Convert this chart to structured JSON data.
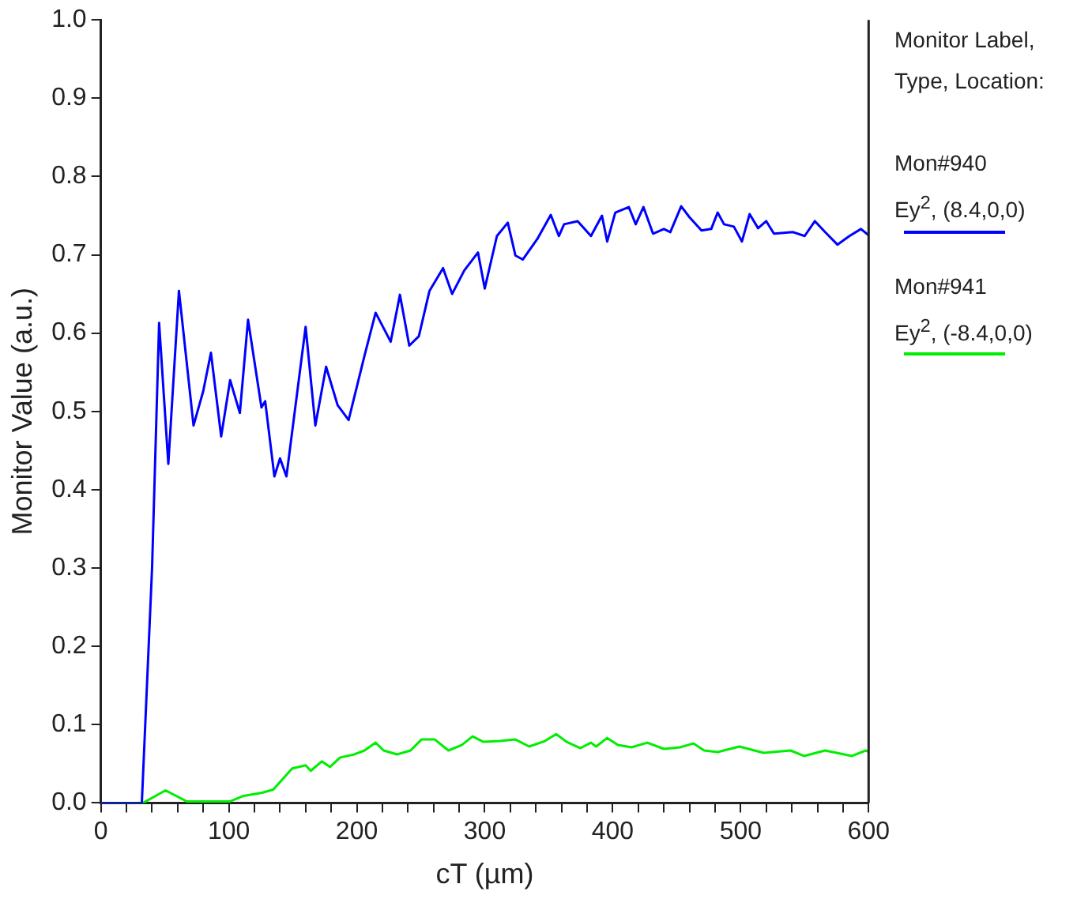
{
  "chart_data": {
    "type": "line",
    "xlabel": "cT (µm)",
    "ylabel": "Monitor Value (a.u.)",
    "legend_title": "Monitor Label,\nType, Location:",
    "legend": "right",
    "grid": false,
    "marker": "none",
    "line_style": "solid",
    "xlim": [
      0,
      600
    ],
    "ylim": [
      0,
      1
    ],
    "xticks": [
      0,
      {
        "value": 20,
        "label": null
      },
      {
        "value": 40,
        "label": null
      },
      {
        "value": 60,
        "label": null
      },
      {
        "value": 80,
        "label": null
      },
      100,
      {
        "value": 120,
        "label": null
      },
      {
        "value": 140,
        "label": null
      },
      {
        "value": 160,
        "label": null
      },
      {
        "value": 180,
        "label": null
      },
      200,
      {
        "value": 220,
        "label": null
      },
      {
        "value": 240,
        "label": null
      },
      {
        "value": 260,
        "label": null
      },
      {
        "value": 280,
        "label": null
      },
      300,
      {
        "value": 320,
        "label": null
      },
      {
        "value": 340,
        "label": null
      },
      {
        "value": 360,
        "label": null
      },
      {
        "value": 380,
        "label": null
      },
      400,
      {
        "value": 420,
        "label": null
      },
      {
        "value": 440,
        "label": null
      },
      {
        "value": 460,
        "label": null
      },
      {
        "value": 480,
        "label": null
      },
      500,
      {
        "value": 520,
        "label": null
      },
      {
        "value": 540,
        "label": null
      },
      {
        "value": 560,
        "label": null
      },
      {
        "value": 580,
        "label": null
      },
      600
    ],
    "yticks": [
      {
        "value": 0,
        "label": "0.0"
      },
      0.1,
      0.2,
      0.3,
      0.4,
      0.5,
      0.6,
      0.7,
      0.8,
      0.9,
      {
        "value": 1,
        "label": "1.0"
      }
    ],
    "series": [
      {
        "name": "Mon#940\nEy$^{2}$, (8.4,0,0)",
        "color": "#0000ff",
        "x": [
          0,
          32,
          40,
          45.5,
          52.7,
          61,
          72.4,
          80,
          86,
          94,
          101,
          108.6,
          115,
          125.5,
          128.4,
          135.6,
          140,
          145,
          160,
          167.6,
          176,
          185,
          193.6,
          206,
          214.7,
          226.5,
          233.7,
          241,
          248.5,
          256.8,
          267.4,
          274.5,
          284,
          294.7,
          300,
          309.5,
          318,
          324,
          329.7,
          341,
          351.6,
          357.9,
          362,
          372.6,
          383,
          391.6,
          395.7,
          402,
          412.6,
          418,
          424,
          431.5,
          440,
          445,
          453.5,
          460,
          469.4,
          477,
          482,
          487,
          494.7,
          501,
          507,
          513.6,
          520,
          526,
          541,
          550,
          558,
          566,
          575.6,
          585,
          594,
          600
        ],
        "values": [
          0,
          0,
          0.3,
          0.613,
          0.433,
          0.654,
          0.482,
          0.526,
          0.575,
          0.468,
          0.54,
          0.498,
          0.617,
          0.505,
          0.513,
          0.417,
          0.44,
          0.417,
          0.608,
          0.482,
          0.557,
          0.508,
          0.489,
          0.571,
          0.626,
          0.589,
          0.649,
          0.584,
          0.596,
          0.654,
          0.683,
          0.65,
          0.68,
          0.703,
          0.657,
          0.724,
          0.741,
          0.699,
          0.694,
          0.72,
          0.751,
          0.724,
          0.739,
          0.743,
          0.724,
          0.75,
          0.717,
          0.754,
          0.761,
          0.739,
          0.761,
          0.727,
          0.733,
          0.729,
          0.762,
          0.748,
          0.731,
          0.733,
          0.754,
          0.739,
          0.736,
          0.717,
          0.752,
          0.734,
          0.743,
          0.727,
          0.729,
          0.724,
          0.743,
          0.729,
          0.713,
          0.724,
          0.733,
          0.725
        ]
      },
      {
        "name": "Mon#941\nEy$^{2}$, (-8.4,0,0)",
        "color": "#00ee00",
        "x": [
          0,
          33,
          50.5,
          67,
          101,
          111.6,
          126,
          134.7,
          149.5,
          160,
          164,
          172.6,
          179,
          187,
          198,
          206,
          214.7,
          221,
          231.5,
          242,
          250.5,
          261,
          271.6,
          282,
          290.5,
          299,
          311.6,
          324,
          334.7,
          347,
          355.8,
          364,
          374.8,
          383,
          387,
          395.7,
          404,
          414.7,
          427,
          440,
          452.6,
          463,
          471.5,
          482,
          499,
          518,
          539,
          549.5,
          566,
          587,
          597.8,
          600
        ],
        "values": [
          0,
          0,
          0.016,
          0.002,
          0.002,
          0.009,
          0.013,
          0.017,
          0.044,
          0.048,
          0.041,
          0.053,
          0.046,
          0.058,
          0.062,
          0.067,
          0.077,
          0.067,
          0.062,
          0.067,
          0.081,
          0.081,
          0.067,
          0.074,
          0.085,
          0.078,
          0.079,
          0.081,
          0.072,
          0.079,
          0.088,
          0.078,
          0.07,
          0.077,
          0.072,
          0.083,
          0.074,
          0.071,
          0.077,
          0.069,
          0.071,
          0.076,
          0.067,
          0.065,
          0.072,
          0.064,
          0.067,
          0.06,
          0.067,
          0.06,
          0.067,
          0.065
        ]
      }
    ]
  }
}
